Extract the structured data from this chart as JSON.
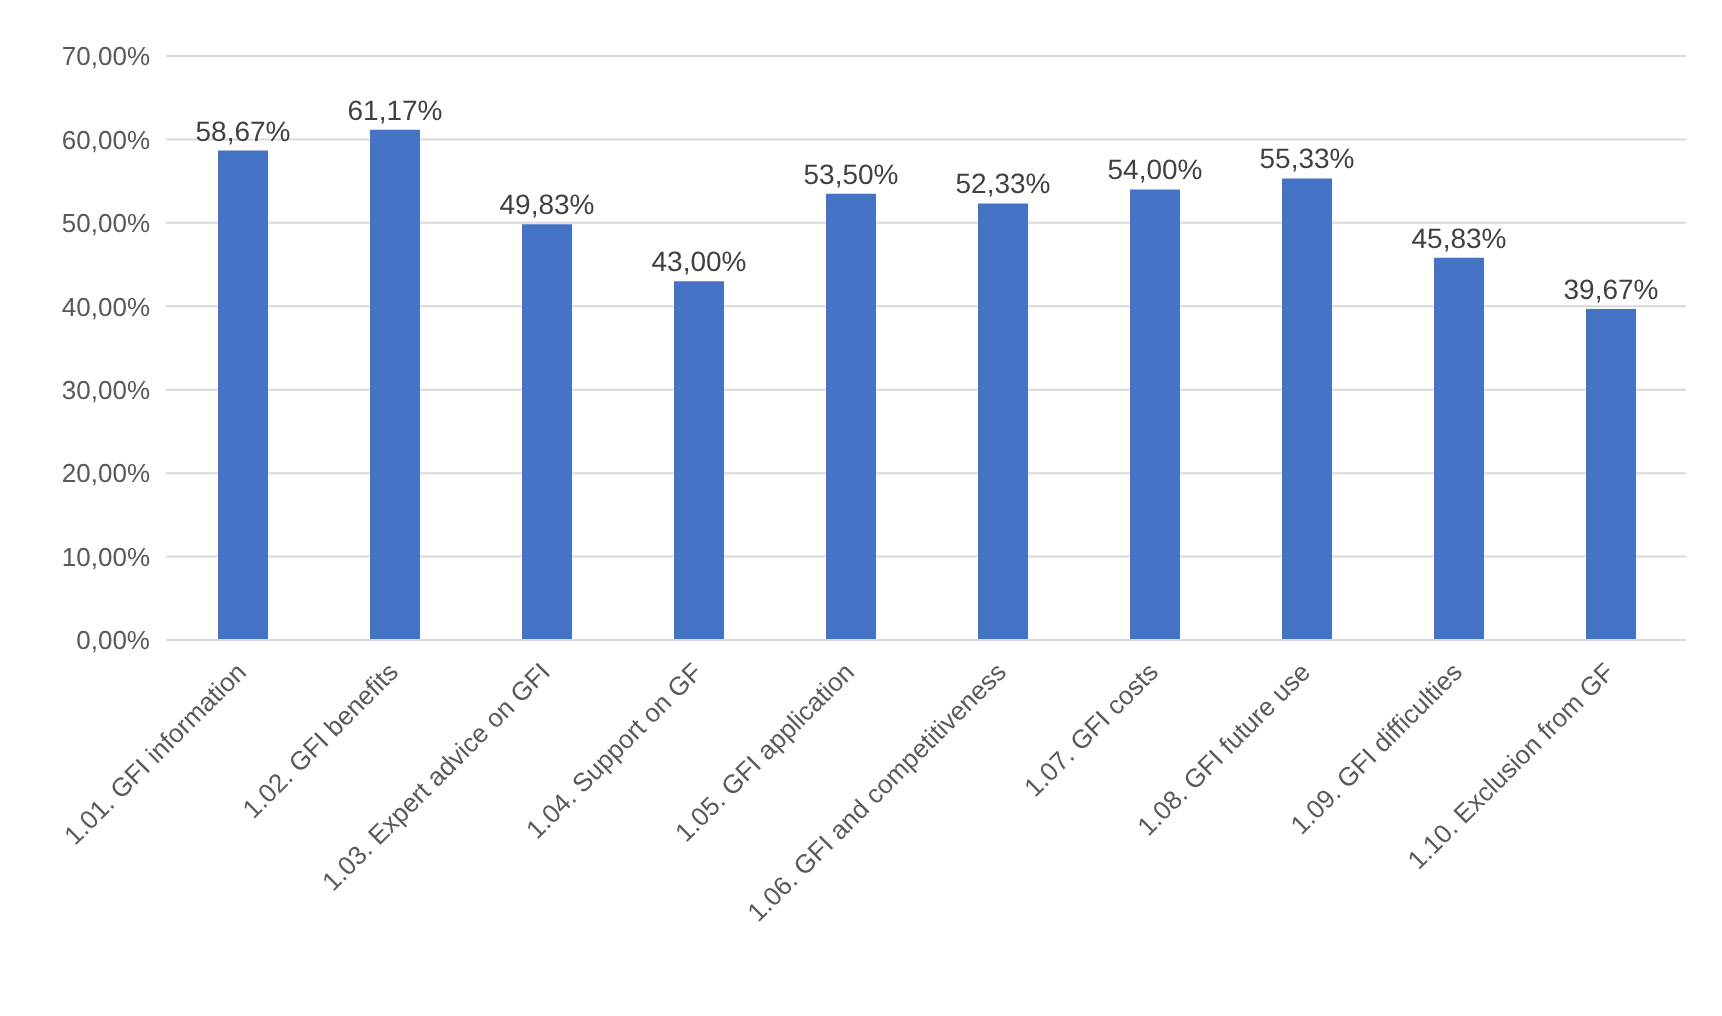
{
  "chart_data": {
    "type": "bar",
    "categories": [
      "1.01. GFI information",
      "1.02. GFI benefits",
      "1.03. Expert advice on GFI",
      "1.04. Support on GF",
      "1.05. GFI application",
      "1.06. GFI and competitiveness",
      "1.07. GFI costs",
      "1.08. GFI future use",
      "1.09. GFI difficulties",
      "1.10. Exclusion from GF"
    ],
    "values": [
      58.67,
      61.17,
      49.83,
      43.0,
      53.5,
      52.33,
      54.0,
      55.33,
      45.83,
      39.67
    ],
    "value_labels": [
      "58,67%",
      "61,17%",
      "49,83%",
      "43,00%",
      "53,50%",
      "52,33%",
      "54,00%",
      "55,33%",
      "45,83%",
      "39,67%"
    ],
    "color": "#4472c4",
    "ylim": [
      0,
      70
    ],
    "yticks": [
      {
        "value": 0,
        "label": "0,00%"
      },
      {
        "value": 10,
        "label": "10,00%"
      },
      {
        "value": 20,
        "label": "20,00%"
      },
      {
        "value": 30,
        "label": "30,00%"
      },
      {
        "value": 40,
        "label": "40,00%"
      },
      {
        "value": 50,
        "label": "50,00%"
      },
      {
        "value": 60,
        "label": "60,00%"
      },
      {
        "value": 70,
        "label": "70,00%"
      }
    ],
    "grid": "y"
  }
}
